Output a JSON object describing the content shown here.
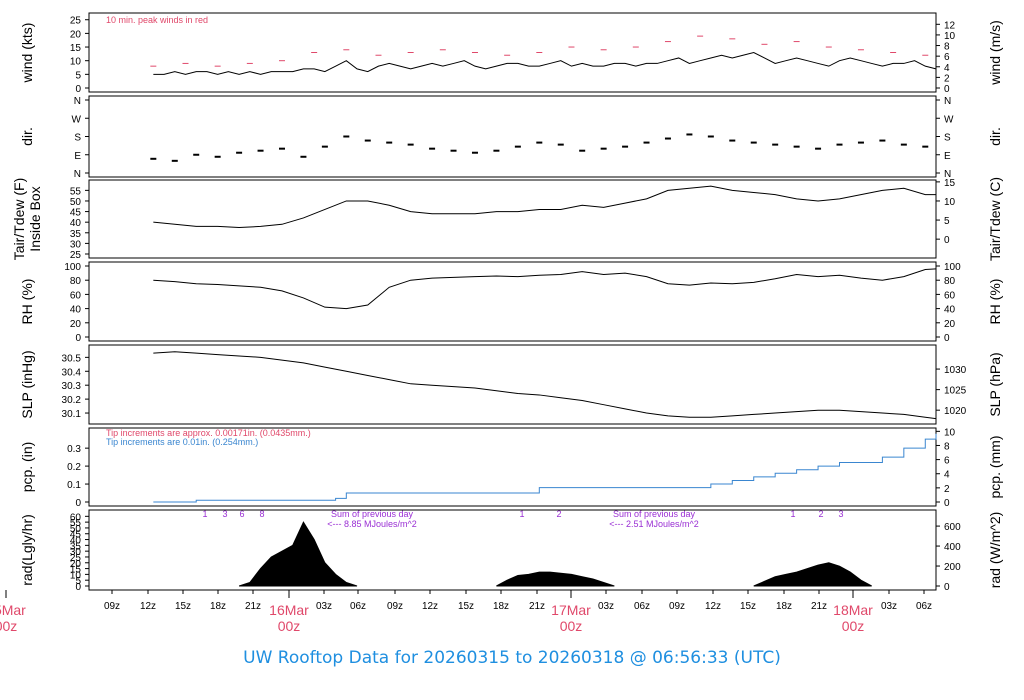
{
  "page_title": "UW Rooftop Data for 20260315  to  20260318 @ 06:56:33  (UTC)",
  "colors": {
    "red": "#e0486a",
    "blue": "#3a86d0",
    "purple": "#9a2fd4",
    "title": "#1f8fe0"
  },
  "chart_data": [
    {
      "type": "line",
      "ylabel": "wind (kts)",
      "ylabel_right": "wind (m/s)",
      "ylim": [
        0,
        26
      ],
      "yticks": [
        0,
        5,
        10,
        15,
        20,
        25
      ],
      "yticks_right": [
        0,
        2,
        4,
        6,
        8,
        10,
        12
      ],
      "annotation": "10 min. peak winds in red",
      "series": [
        {
          "x": [
            6,
            7,
            8,
            9,
            10,
            11,
            12,
            13,
            14,
            15,
            16,
            17,
            18,
            19,
            20,
            21,
            22,
            23,
            24,
            25,
            26,
            27,
            28,
            29,
            30,
            31,
            32,
            33,
            34,
            35,
            36,
            37,
            38,
            39,
            40,
            41,
            42,
            43,
            44,
            45,
            46,
            47,
            48,
            49,
            50,
            51,
            52,
            53,
            54,
            55,
            56,
            57,
            58,
            59,
            60,
            61,
            62,
            63,
            64,
            65,
            66,
            67,
            68,
            69,
            70,
            71,
            72,
            73,
            74,
            75,
            76,
            77,
            78,
            79
          ],
          "values": [
            5,
            5,
            6,
            5,
            6,
            6,
            5,
            6,
            5,
            6,
            5,
            6,
            6,
            6,
            7,
            7,
            6,
            8,
            10,
            7,
            6,
            8,
            9,
            8,
            7,
            8,
            9,
            8,
            9,
            10,
            8,
            7,
            8,
            9,
            9,
            8,
            8,
            9,
            10,
            8,
            9,
            8,
            8,
            9,
            9,
            8,
            9,
            9,
            10,
            11,
            9,
            10,
            11,
            12,
            11,
            12,
            13,
            11,
            9,
            10,
            11,
            10,
            9,
            8,
            10,
            11,
            10,
            9,
            8,
            9,
            9,
            10,
            8,
            7
          ]
        },
        {
          "x": [
            6,
            9,
            12,
            15,
            18,
            21,
            24,
            27,
            30,
            33,
            36,
            39,
            42,
            45,
            48,
            51,
            54,
            57,
            60,
            63,
            66,
            69,
            72,
            75,
            78
          ],
          "values": [
            8,
            9,
            8,
            9,
            10,
            13,
            14,
            12,
            13,
            14,
            13,
            12,
            13,
            15,
            14,
            15,
            17,
            19,
            18,
            16,
            17,
            15,
            14,
            13,
            12
          ]
        }
      ]
    },
    {
      "type": "scatter",
      "ylabel": "dir.",
      "ylabel_right": "dir.",
      "yticks": [
        "N",
        "E",
        "S",
        "W",
        "N"
      ],
      "x": [
        6,
        8,
        10,
        12,
        14,
        16,
        18,
        20,
        22,
        24,
        26,
        28,
        30,
        32,
        34,
        36,
        38,
        40,
        42,
        44,
        46,
        48,
        50,
        52,
        54,
        56,
        58,
        60,
        62,
        64,
        66,
        68,
        70,
        72,
        74,
        76,
        78
      ],
      "values": [
        70,
        60,
        90,
        80,
        100,
        110,
        120,
        80,
        130,
        180,
        160,
        150,
        140,
        120,
        110,
        100,
        110,
        130,
        150,
        140,
        110,
        120,
        130,
        150,
        170,
        190,
        180,
        160,
        150,
        140,
        130,
        120,
        140,
        150,
        160,
        140,
        130
      ]
    },
    {
      "type": "line",
      "ylabel": "Tair/Tdew (F)\nInside Box",
      "ylabel_right": "Tair/Tdew (C)",
      "yticks": [
        25,
        30,
        35,
        40,
        45,
        50,
        55
      ],
      "yticks_right": [
        0,
        5,
        10,
        15
      ],
      "x": [
        6,
        8,
        10,
        12,
        14,
        16,
        18,
        20,
        22,
        24,
        26,
        28,
        30,
        32,
        34,
        36,
        38,
        40,
        42,
        44,
        46,
        48,
        50,
        52,
        54,
        56,
        58,
        60,
        62,
        64,
        66,
        68,
        70,
        72,
        74,
        76,
        78,
        79
      ],
      "values": [
        40,
        39,
        38,
        38,
        37.5,
        38,
        39,
        42,
        46,
        50,
        50,
        48,
        45,
        44,
        44,
        44,
        45,
        45,
        46,
        46,
        48,
        47,
        49,
        51,
        55,
        56,
        57,
        55,
        54,
        53,
        51,
        50,
        51,
        53,
        55,
        56,
        53,
        53
      ]
    },
    {
      "type": "line",
      "ylabel": "RH (%)",
      "ylabel_right": "RH (%)",
      "yticks": [
        0,
        20,
        40,
        60,
        80,
        100
      ],
      "x": [
        6,
        8,
        10,
        12,
        14,
        16,
        18,
        20,
        22,
        24,
        26,
        28,
        30,
        32,
        34,
        36,
        38,
        40,
        42,
        44,
        46,
        48,
        50,
        52,
        54,
        56,
        58,
        60,
        62,
        64,
        66,
        68,
        70,
        72,
        74,
        76,
        78,
        79
      ],
      "values": [
        80,
        78,
        75,
        74,
        72,
        70,
        65,
        55,
        42,
        40,
        45,
        70,
        80,
        83,
        84,
        85,
        86,
        85,
        87,
        88,
        92,
        88,
        90,
        85,
        75,
        73,
        76,
        75,
        77,
        82,
        88,
        85,
        87,
        83,
        80,
        85,
        95,
        96
      ]
    },
    {
      "type": "line",
      "ylabel": "SLP (inHg)",
      "ylabel_right": "SLP (hPa)",
      "yticks": [
        30.1,
        30.2,
        30.3,
        30.4,
        30.5
      ],
      "yticks_right": [
        1020,
        1025,
        1030
      ],
      "x": [
        6,
        8,
        10,
        12,
        14,
        16,
        18,
        20,
        22,
        24,
        26,
        28,
        30,
        32,
        34,
        36,
        38,
        40,
        42,
        44,
        46,
        48,
        50,
        52,
        54,
        56,
        58,
        60,
        62,
        64,
        66,
        68,
        70,
        72,
        74,
        76,
        78,
        79
      ],
      "values": [
        30.53,
        30.54,
        30.53,
        30.52,
        30.51,
        30.5,
        30.48,
        30.46,
        30.43,
        30.4,
        30.37,
        30.34,
        30.31,
        30.3,
        30.29,
        30.28,
        30.26,
        30.24,
        30.23,
        30.21,
        30.19,
        30.16,
        30.13,
        30.1,
        30.08,
        30.07,
        30.07,
        30.08,
        30.09,
        30.1,
        30.11,
        30.12,
        30.12,
        30.11,
        30.1,
        30.09,
        30.07,
        30.06
      ]
    },
    {
      "type": "line",
      "ylabel": "pcp. (in)",
      "ylabel_right": "pcp. (mm)",
      "yticks": [
        0.0,
        0.1,
        0.2,
        0.3
      ],
      "yticks_right": [
        0,
        2,
        4,
        6,
        8,
        10
      ],
      "annotation_red": "Tip increments are approx. 0.00171in. (0.0435mm.)",
      "annotation_blue": "Tip increments are 0.01in. (0.254mm.)",
      "x": [
        6,
        10,
        20,
        23,
        24,
        30,
        40,
        42,
        50,
        56,
        58,
        60,
        62,
        64,
        66,
        68,
        70,
        72,
        74,
        76,
        78,
        79
      ],
      "values": [
        0,
        0.01,
        0.01,
        0.02,
        0.05,
        0.05,
        0.05,
        0.08,
        0.08,
        0.08,
        0.1,
        0.12,
        0.14,
        0.16,
        0.18,
        0.2,
        0.22,
        0.22,
        0.25,
        0.3,
        0.35,
        0.38
      ]
    },
    {
      "type": "area",
      "ylabel": "rad(Lgly/hr)",
      "ylabel_right": "rad (W/m^2)",
      "yticks": [
        0,
        5,
        10,
        15,
        20,
        25,
        30,
        35,
        40,
        45,
        50,
        55,
        60
      ],
      "yticks_right": [
        0,
        200,
        400,
        600
      ],
      "annotations": [
        {
          "text": "Sum of previous day",
          "text2": "<--- 8.85 MJoules/m^2"
        },
        {
          "text": "Sum of previous day",
          "text2": "<--- 2.51 MJoules/m^2"
        }
      ],
      "hour_marks": [
        "1",
        "3",
        "6",
        "8",
        "1",
        "2",
        "1",
        "2",
        "3"
      ],
      "x": [
        14,
        15,
        16,
        17,
        18,
        19,
        20,
        21,
        22,
        23,
        24,
        25,
        38,
        39,
        40,
        41,
        42,
        43,
        44,
        45,
        46,
        47,
        48,
        49,
        62,
        63,
        64,
        65,
        66,
        67,
        68,
        69,
        70,
        71,
        72,
        73
      ],
      "values": [
        0,
        3,
        15,
        25,
        30,
        35,
        55,
        40,
        20,
        10,
        3,
        0,
        0,
        5,
        9,
        10,
        12,
        12,
        11,
        10,
        8,
        6,
        3,
        0,
        0,
        4,
        8,
        10,
        12,
        15,
        18,
        20,
        17,
        12,
        5,
        0
      ]
    }
  ],
  "x_axis": {
    "ticks": [
      "09z",
      "12z",
      "15z",
      "18z",
      "21z",
      "03z",
      "06z",
      "09z",
      "12z",
      "15z",
      "18z",
      "21z",
      "03z",
      "06z",
      "09z",
      "12z",
      "15z",
      "18z",
      "21z",
      "03z",
      "06z"
    ],
    "day_labels": [
      {
        "date": "15Mar",
        "hour": "00z"
      },
      {
        "date": "16Mar",
        "hour": "00z"
      },
      {
        "date": "17Mar",
        "hour": "00z"
      },
      {
        "date": "18Mar",
        "hour": "00z"
      }
    ]
  }
}
